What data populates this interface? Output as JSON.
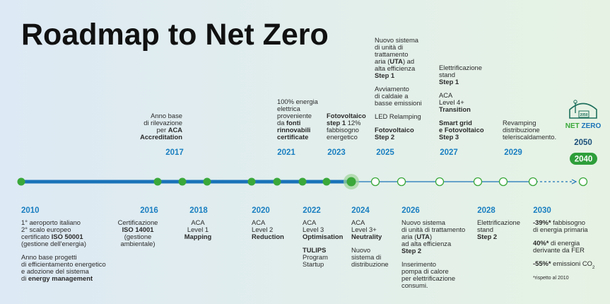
{
  "title": "Roadmap to Net Zero",
  "milestones_above": [
    {
      "year": "2017",
      "paragraphs": [
        [
          [
            "Anno base"
          ],
          [
            "di rilevazione"
          ],
          [
            "per ",
            {
              "text": "ACA",
              "b": true
            }
          ],
          [
            {
              "text": "Accreditation",
              "b": true
            }
          ]
        ]
      ]
    },
    {
      "year": "2021",
      "paragraphs": [
        [
          [
            "100% energia"
          ],
          [
            "elettrica"
          ],
          [
            "proveniente"
          ],
          [
            "da ",
            {
              "text": "fonti",
              "b": true
            }
          ],
          [
            {
              "text": "rinnovabili",
              "b": true
            }
          ],
          [
            {
              "text": "certificate",
              "b": true
            }
          ]
        ]
      ]
    },
    {
      "year": "2023",
      "paragraphs": [
        [
          [
            {
              "text": "Fotovoltaico",
              "b": true
            }
          ],
          [
            {
              "text": "step 1",
              "b": true
            },
            " 12%"
          ],
          [
            "fabbisogno"
          ],
          [
            "energetico"
          ]
        ]
      ]
    },
    {
      "year": "2025",
      "paragraphs": [
        [
          [
            "Nuovo sistema"
          ],
          [
            "di unità di"
          ],
          [
            "trattamento"
          ],
          [
            "aria (",
            {
              "text": "UTA",
              "b": true
            },
            ") ad"
          ],
          [
            "alta efficienza"
          ],
          [
            {
              "text": "Step 1",
              "b": true
            }
          ]
        ],
        [
          [
            "Avviamento"
          ],
          [
            "di caldaie a"
          ],
          [
            "basse emissioni"
          ]
        ],
        [
          [
            "LED Relamping"
          ]
        ],
        [
          [
            {
              "text": "Fotovoltaico",
              "b": true
            }
          ],
          [
            {
              "text": "Step 2",
              "b": true
            }
          ]
        ]
      ]
    },
    {
      "year": "2027",
      "paragraphs": [
        [
          [
            "Elettrificazione"
          ],
          [
            "stand"
          ],
          [
            {
              "text": "Step 1",
              "b": true
            }
          ]
        ],
        [
          [
            "ACA"
          ],
          [
            "Level 4+"
          ],
          [
            {
              "text": "Transition",
              "b": true
            }
          ]
        ],
        [
          [
            {
              "text": "Smart grid",
              "b": true
            }
          ],
          [
            {
              "text": "e Fotovoltaico",
              "b": true
            }
          ],
          [
            {
              "text": "Step 3",
              "b": true
            }
          ]
        ]
      ]
    },
    {
      "year": "2029",
      "paragraphs": [
        [
          [
            "Revamping"
          ],
          [
            "distribuzione"
          ],
          [
            "teleriscaldamento."
          ]
        ]
      ]
    }
  ],
  "milestones_below": [
    {
      "year": "2010",
      "paragraphs": [
        [
          [
            "1° aeroporto italiano"
          ],
          [
            "2° scalo europeo"
          ],
          [
            "certificato ",
            {
              "text": "ISO 50001",
              "b": true
            }
          ],
          [
            "(gestione dell'energia)"
          ]
        ],
        [
          [
            "Anno base progetti"
          ],
          [
            "di efficientamento energetico"
          ],
          [
            "e adozione del sistema"
          ],
          [
            "di ",
            {
              "text": "energy management",
              "b": true
            }
          ]
        ]
      ]
    },
    {
      "year": "2016",
      "paragraphs": [
        [
          [
            "Certificazione"
          ],
          [
            {
              "text": "ISO 14001",
              "b": true
            }
          ],
          [
            "(gestione"
          ],
          [
            "ambientale)"
          ]
        ]
      ]
    },
    {
      "year": "2018",
      "paragraphs": [
        [
          [
            "ACA"
          ],
          [
            "Level 1"
          ],
          [
            {
              "text": "Mapping",
              "b": true
            }
          ]
        ]
      ]
    },
    {
      "year": "2020",
      "paragraphs": [
        [
          [
            "ACA"
          ],
          [
            "Level 2"
          ],
          [
            {
              "text": "Reduction",
              "b": true
            }
          ]
        ]
      ]
    },
    {
      "year": "2022",
      "paragraphs": [
        [
          [
            "ACA"
          ],
          [
            "Level 3"
          ],
          [
            {
              "text": "Optimisation",
              "b": true
            }
          ]
        ],
        [
          [
            {
              "text": "TULIPS",
              "b": true
            }
          ],
          [
            "Program"
          ],
          [
            "Startup"
          ]
        ]
      ]
    },
    {
      "year": "2024",
      "paragraphs": [
        [
          [
            "ACA"
          ],
          [
            "Level 3+"
          ],
          [
            {
              "text": "Neutrality",
              "b": true
            }
          ]
        ],
        [
          [
            "Nuovo"
          ],
          [
            "sistema di"
          ],
          [
            "distribuzione"
          ]
        ]
      ]
    },
    {
      "year": "2026",
      "paragraphs": [
        [
          [
            "Nuovo sistema"
          ],
          [
            "di unità di trattamento"
          ],
          [
            "aria (",
            {
              "text": "UTA",
              "b": true
            },
            ")"
          ],
          [
            "ad alta efficienza"
          ],
          [
            {
              "text": "Step 2",
              "b": true
            }
          ]
        ],
        [
          [
            "Inserimento"
          ],
          [
            "pompa di calore"
          ],
          [
            "per elettrificazione"
          ],
          [
            "consumi."
          ]
        ]
      ]
    },
    {
      "year": "2028",
      "paragraphs": [
        [
          [
            "Elettrificazione"
          ],
          [
            "stand"
          ],
          [
            {
              "text": "Step 2",
              "b": true
            }
          ]
        ]
      ]
    },
    {
      "year": "2030",
      "paragraphs": [
        [
          [
            {
              "text": "-39%*",
              "b": true
            },
            " fabbisogno"
          ],
          [
            "di energia primaria"
          ]
        ],
        [
          [
            {
              "text": "40%*",
              "b": true
            },
            " di energia"
          ],
          [
            "derivante da FER"
          ]
        ],
        [
          [
            {
              "text": "-55%*",
              "b": true
            },
            " emissioni CO",
            {
              "text": "2",
              "sub": true
            }
          ]
        ],
        [
          [
            {
              "text": "*rispetto al 2010",
              "small": true
            }
          ]
        ]
      ]
    }
  ],
  "goal": {
    "logo_net": "NET",
    "logo_zero": "ZERO",
    "logo_year": "2050",
    "year_final": "2050",
    "year_pill": "2040"
  }
}
